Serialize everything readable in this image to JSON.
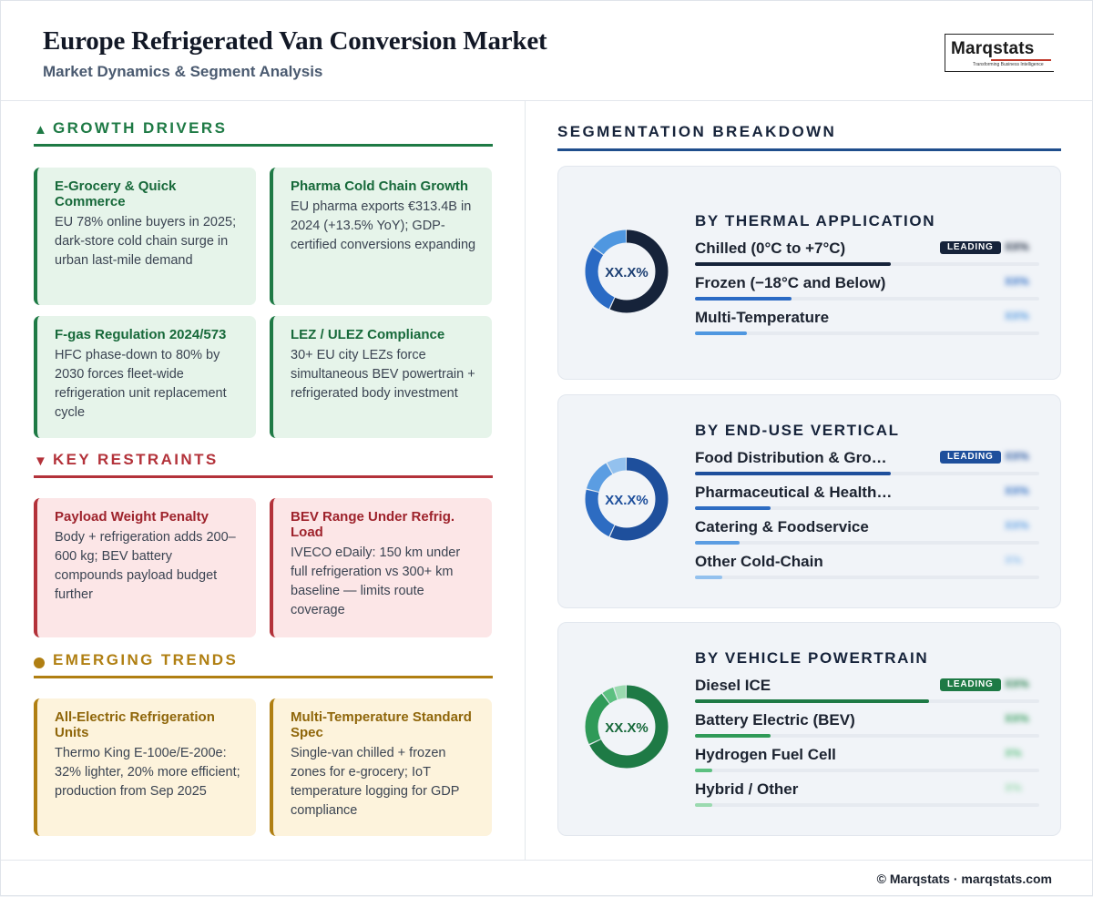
{
  "header": {
    "title": "Europe Refrigerated Van Conversion Market",
    "subtitle": "Market Dynamics & Segment Analysis",
    "logo": {
      "word": "Marqstats",
      "tagline": "Transforming Business Intelligence"
    }
  },
  "drivers": {
    "symbol": "▲",
    "label": "GROWTH DRIVERS",
    "color": "#1e7a45",
    "cards": [
      {
        "title": "E-Grocery & Quick Commerce",
        "body": "EU 78% online buyers in 2025; dark-store cold chain surge in urban last-mile demand"
      },
      {
        "title": "Pharma Cold Chain Growth",
        "body": "EU pharma exports €313.4B in 2024 (+13.5% YoY); GDP-certified conversions expanding"
      },
      {
        "title": "F-gas Regulation 2024/573",
        "body": "HFC phase-down to 80% by 2030 forces fleet-wide refrigeration unit replacement cycle"
      },
      {
        "title": "LEZ / ULEZ Compliance",
        "body": "30+ EU city LEZs force simultaneous BEV powertrain + refrigerated body investment"
      }
    ]
  },
  "restraints": {
    "symbol": "▼",
    "label": "KEY RESTRAINTS",
    "color": "#b3323a",
    "cards": [
      {
        "title": "Payload Weight Penalty",
        "body": "Body + refrigeration adds 200–600 kg; BEV battery compounds payload budget further"
      },
      {
        "title": "BEV Range Under Refrig. Load",
        "body": "IVECO eDaily: 150 km under full refrigeration vs 300+ km baseline — limits route coverage"
      }
    ]
  },
  "trends": {
    "label": "EMERGING TRENDS",
    "color": "#b07f12",
    "cards": [
      {
        "title": "All-Electric Refrigeration Units",
        "body": "Thermo King E-100e/E-200e: 32% lighter, 20% more efficient; production from Sep 2025"
      },
      {
        "title": "Multi-Temperature Standard Spec",
        "body": "Single-van chilled + frozen zones for e-grocery; IoT temperature logging for GDP compliance"
      }
    ]
  },
  "segmentation": {
    "label": "SEGMENTATION BREAKDOWN",
    "leading_label": "LEADING",
    "panels": [
      {
        "title": "BY THERMAL APPLICATION",
        "donut_label": "XX.X%",
        "label_color": "#1c3f73",
        "badge_color": "#16233a",
        "rows": [
          {
            "name": "Chilled (0°C to +7°C)",
            "value": "XX%",
            "share": 0.57,
            "color": "#16233a",
            "leading": true
          },
          {
            "name": "Frozen (−18°C and Below)",
            "value": "XX%",
            "share": 0.28,
            "color": "#2a6ac4",
            "leading": false
          },
          {
            "name": "Multi-Temperature",
            "value": "XX%",
            "share": 0.15,
            "color": "#4f97e0",
            "leading": false
          }
        ]
      },
      {
        "title": "BY END-USE VERTICAL",
        "donut_label": "XX.X%",
        "label_color": "#1e4f9c",
        "badge_color": "#1e4f9c",
        "rows": [
          {
            "name": "Food Distribution & Grocery",
            "value": "XX%",
            "share": 0.57,
            "color": "#1e4f9c",
            "leading": true
          },
          {
            "name": "Pharmaceutical & Healthcare",
            "value": "XX%",
            "share": 0.22,
            "color": "#2d6cc2",
            "leading": false
          },
          {
            "name": "Catering & Foodservice",
            "value": "XX%",
            "share": 0.13,
            "color": "#5b9de2",
            "leading": false
          },
          {
            "name": "Other Cold-Chain",
            "value": "X%",
            "share": 0.08,
            "color": "#93c1ee",
            "leading": false
          }
        ]
      },
      {
        "title": "BY VEHICLE POWERTRAIN",
        "donut_label": "XX.X%",
        "label_color": "#17693a",
        "badge_color": "#1e7a45",
        "rows": [
          {
            "name": "Diesel ICE",
            "value": "XX%",
            "share": 0.68,
            "color": "#1e7a45",
            "leading": true
          },
          {
            "name": "Battery Electric (BEV)",
            "value": "XX%",
            "share": 0.22,
            "color": "#2f9a58",
            "leading": false
          },
          {
            "name": "Hydrogen Fuel Cell",
            "value": "X%",
            "share": 0.05,
            "color": "#5cc080",
            "leading": false
          },
          {
            "name": "Hybrid / Other",
            "value": "X%",
            "share": 0.05,
            "color": "#9bdab0",
            "leading": false
          }
        ]
      }
    ]
  },
  "footer": {
    "text": "© Marqstats · marqstats.com"
  }
}
